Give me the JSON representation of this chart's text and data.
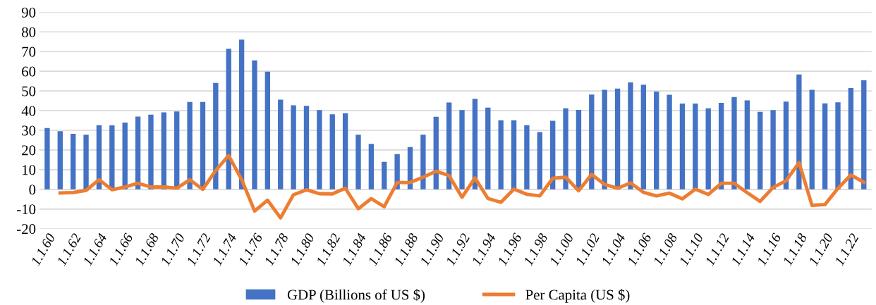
{
  "chart_data": {
    "type": "bar",
    "categories": [
      "1.1.60",
      null,
      "1.1.62",
      null,
      "1.1.64",
      null,
      "1.1.66",
      null,
      "1.1.68",
      null,
      "1.1.70",
      null,
      "1.1.72",
      null,
      "1.1.74",
      null,
      "1.1.76",
      null,
      "1.1.78",
      null,
      "1.1.80",
      null,
      "1.1.82",
      null,
      "1.1.84",
      null,
      "1.1.86",
      null,
      "1.1.88",
      null,
      "1.1.90",
      null,
      "1.1.92",
      null,
      "1.1.94",
      null,
      "1.1.96",
      null,
      "1.1.98",
      null,
      "1.1.00",
      null,
      "1.1.02",
      null,
      "1.1.04",
      null,
      "1.1.06",
      null,
      "1.1.08",
      null,
      "1.1.10",
      null,
      "1.1.12",
      null,
      "1.1.14",
      null,
      "1.1.16",
      null,
      "1.1.18",
      null,
      "1.1.20",
      null,
      "1.1.22",
      null
    ],
    "series": [
      {
        "name": "GDP (Billions of US $)",
        "color": "#4472c4",
        "values": [
          31.2,
          29.6,
          28.2,
          27.8,
          32.6,
          32.5,
          33.9,
          37,
          38,
          39.1,
          39.6,
          44.4,
          44.4,
          54.1,
          71.4,
          76.1,
          65.5,
          59.8,
          45.6,
          42.7,
          42.4,
          40.3,
          38.1,
          38.7,
          27.8,
          23.1,
          14,
          17.9,
          21.5,
          27.8,
          36.9,
          44.1,
          40.3,
          46,
          41.5,
          35.1,
          35.1,
          32.6,
          29.1,
          34.8,
          41.2,
          40.4,
          48.2,
          50.6,
          51.2,
          54.3,
          53.2,
          49.7,
          48.1,
          43.6,
          43.6,
          41.2,
          44,
          46.9,
          45.2,
          39.4,
          40.3,
          44.6,
          58.4,
          50.6,
          43.7,
          44.2,
          51.5,
          55.4
        ]
      },
      {
        "name": "Per Capita (US $)",
        "type": "line",
        "color": "#ed7d31",
        "values": [
          null,
          -1.8,
          -1.6,
          -0.5,
          4.9,
          -0.2,
          1.2,
          3.1,
          1.2,
          1.2,
          0.6,
          4.9,
          0,
          9.6,
          17.2,
          5,
          -11,
          -5.5,
          -14.5,
          -2.7,
          -0.2,
          -2.2,
          -2.3,
          0.6,
          -9.8,
          -4.7,
          -8.8,
          3.5,
          3.5,
          6.2,
          9.2,
          7,
          -4,
          5.8,
          -4.6,
          -6.6,
          0.1,
          -2.5,
          -3.3,
          5.6,
          6.2,
          -0.7,
          7.6,
          2.5,
          0.6,
          3.3,
          -1.5,
          -3.3,
          -1.9,
          -4.8,
          0.1,
          -2.6,
          3.1,
          3.1,
          -1.7,
          -6.1,
          1,
          4.4,
          13.6,
          -8.1,
          -7.7,
          0.5,
          7.3,
          3.6
        ]
      }
    ],
    "ylim": [
      -20,
      90
    ],
    "yticks": [
      -20,
      -10,
      0,
      10,
      20,
      30,
      40,
      50,
      60,
      70,
      80,
      90
    ],
    "grid": "y",
    "legend": "bottom"
  }
}
